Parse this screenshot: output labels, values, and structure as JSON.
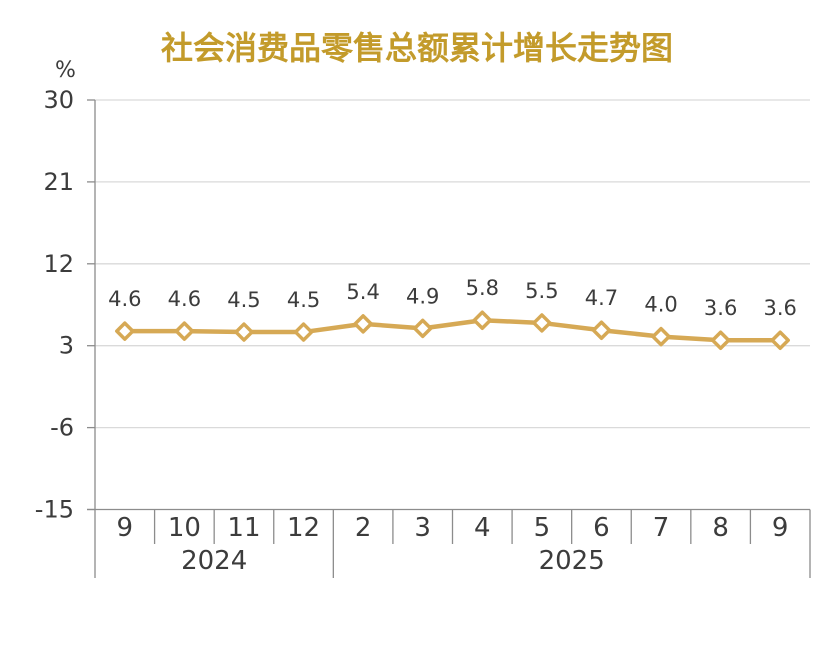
{
  "chart_data": {
    "type": "line",
    "title": "社会消费品零售总额累计增长走势图",
    "unit": "%",
    "categories": [
      "9",
      "10",
      "11",
      "12",
      "2",
      "3",
      "4",
      "5",
      "6",
      "7",
      "8",
      "9"
    ],
    "year_groups": [
      {
        "label": "2024",
        "months": 4
      },
      {
        "label": "2025",
        "months": 8
      }
    ],
    "series": [
      {
        "name": "社会消费品零售总额累计增长",
        "values": [
          4.6,
          4.6,
          4.5,
          4.5,
          5.4,
          4.9,
          5.8,
          5.5,
          4.7,
          4.0,
          3.6,
          3.6
        ]
      }
    ],
    "data_labels": [
      "4.6",
      "4.6",
      "4.5",
      "4.5",
      "5.4",
      "4.9",
      "5.8",
      "5.5",
      "4.7",
      "4.0",
      "3.6",
      "3.6"
    ],
    "yticks": [
      30,
      21,
      12,
      3,
      -6,
      -15
    ],
    "ylim": [
      -15,
      30
    ],
    "grid": true,
    "legend": "none",
    "marker": "diamond",
    "colors": {
      "title": "#C39B2B",
      "line": "#D6A955",
      "marker_fill": "#FFFFFF",
      "grid": "#DADADA",
      "axis": "#8C8C8C",
      "text": "#3C3C3C"
    }
  }
}
